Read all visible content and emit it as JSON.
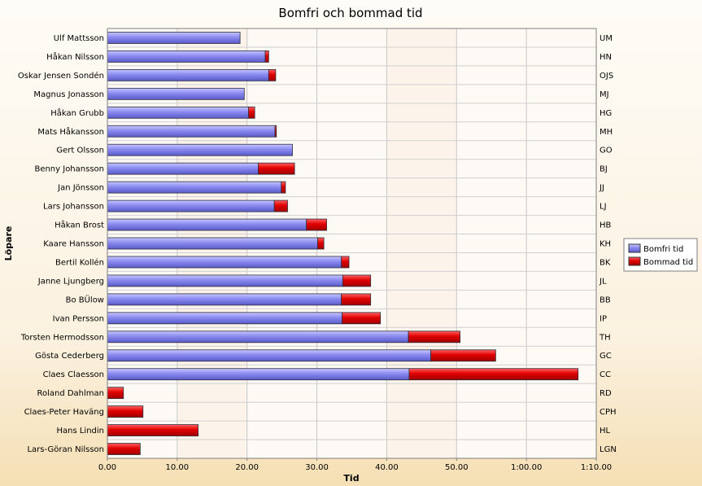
{
  "chart_data": {
    "type": "bar",
    "orientation": "horizontal",
    "stacked": true,
    "title": "Bomfri och bommad tid",
    "xlabel": "Tid",
    "ylabel": "Löpare",
    "xlim": [
      0,
      70
    ],
    "x_ticks": [
      0,
      10,
      20,
      30,
      40,
      50,
      60,
      70
    ],
    "x_tick_labels": [
      "0.00",
      "10.00",
      "20.00",
      "30.00",
      "40.00",
      "50.00",
      "1:00.00",
      "1:10.00"
    ],
    "grid": true,
    "legend_position": "right",
    "categories": [
      "Ulf Mattsson",
      "Håkan Nilsson",
      "Oskar Jensen Sondén",
      "Magnus Jonasson",
      "Håkan Grubb",
      "Mats Håkansson",
      "Gert Olsson",
      "Benny Johansson",
      "Jan Jönsson",
      "Lars Johansson",
      "Håkan Brost",
      "Kaare Hansson",
      "Bertil Kollén",
      "Janne Ljungberg",
      "Bo BÜlow",
      "Ivan Persson",
      "Torsten Hermodsson",
      "Gösta Cederberg",
      "Claes Claesson",
      "Roland Dahlman",
      "Claes-Peter Haväng",
      "Hans Lindin",
      "Lars-Göran Nilsson"
    ],
    "initials": [
      "UM",
      "HN",
      "OJS",
      "MJ",
      "HG",
      "MH",
      "GO",
      "BJ",
      "JJ",
      "LJ",
      "HB",
      "KH",
      "BK",
      "JL",
      "BB",
      "IP",
      "TH",
      "GC",
      "CC",
      "RD",
      "CPH",
      "HL",
      "LGN"
    ],
    "series": [
      {
        "name": "Bomfri tid",
        "color": "#8a8af0",
        "values": [
          19.0,
          22.6,
          23.1,
          19.6,
          20.2,
          24.0,
          26.5,
          21.6,
          24.9,
          23.9,
          28.5,
          30.1,
          33.5,
          33.7,
          33.5,
          33.6,
          43.1,
          46.3,
          43.2,
          0,
          0,
          0,
          0
        ]
      },
      {
        "name": "Bommad tid",
        "color": "#e00000",
        "values": [
          0,
          0.5,
          1.0,
          0,
          0.9,
          0.2,
          0,
          5.2,
          0.6,
          1.9,
          2.9,
          0.9,
          1.1,
          4.0,
          4.2,
          5.5,
          7.4,
          9.3,
          24.2,
          2.3,
          5.1,
          13.0,
          4.7
        ]
      }
    ]
  }
}
